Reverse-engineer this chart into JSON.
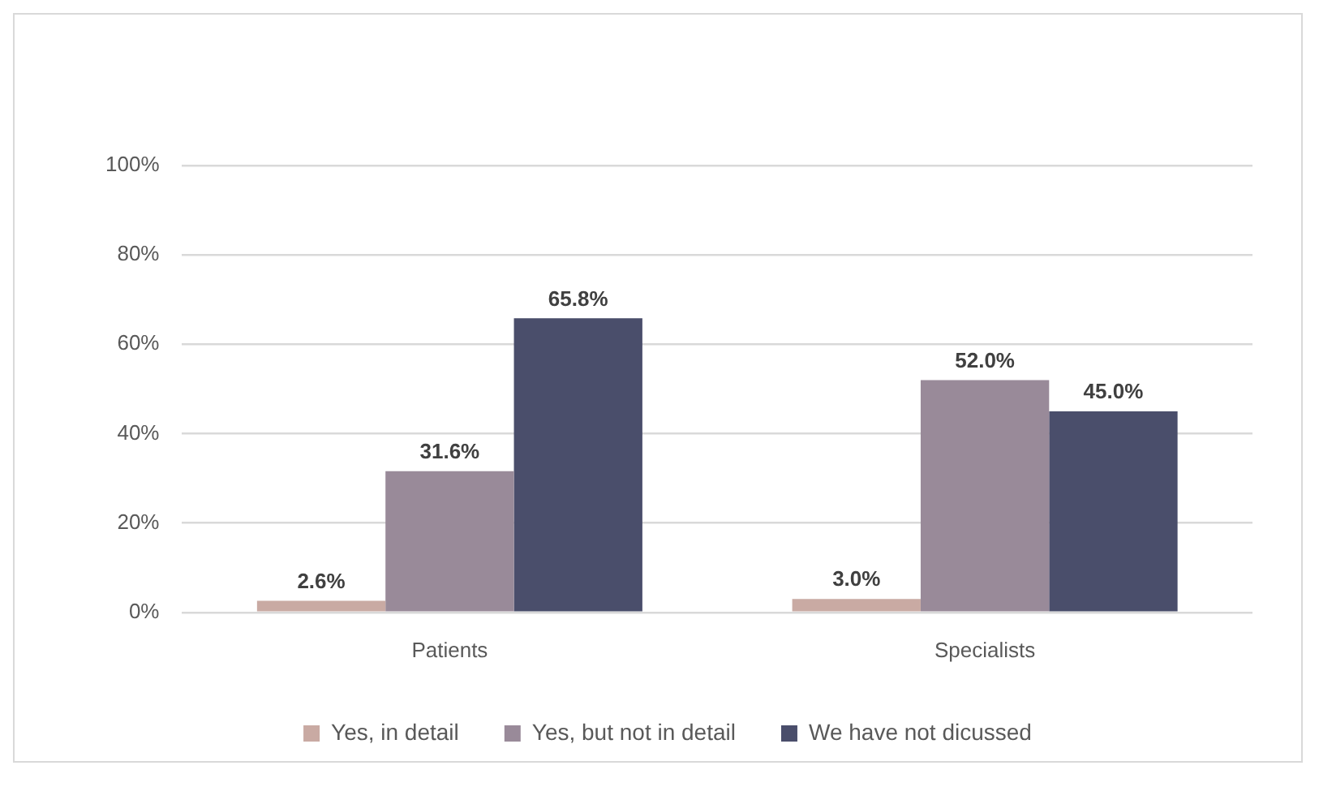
{
  "chart_data": {
    "type": "bar",
    "categories": [
      "Patients",
      "Specialists"
    ],
    "series": [
      {
        "name": "Yes, in detail",
        "color": "#c9aaa3",
        "values": [
          2.6,
          3.0
        ],
        "value_labels": [
          "2.6%",
          "3.0%"
        ]
      },
      {
        "name": "Yes, but not in detail",
        "color": "#998a99",
        "values": [
          31.6,
          52.0
        ],
        "value_labels": [
          "31.6%",
          "52.0%"
        ]
      },
      {
        "name": "We have not dicussed",
        "color": "#4a4e6b",
        "values": [
          65.8,
          45.0
        ],
        "value_labels": [
          "65.8%",
          "45.0%"
        ]
      }
    ],
    "ylim": [
      0,
      100
    ],
    "yticks": [
      {
        "value": 0,
        "label": "0%"
      },
      {
        "value": 20,
        "label": "20%"
      },
      {
        "value": 40,
        "label": "40%"
      },
      {
        "value": 60,
        "label": "60%"
      },
      {
        "value": 80,
        "label": "80%"
      },
      {
        "value": 100,
        "label": "100%"
      }
    ],
    "grid": "y",
    "legend": "bottom"
  }
}
